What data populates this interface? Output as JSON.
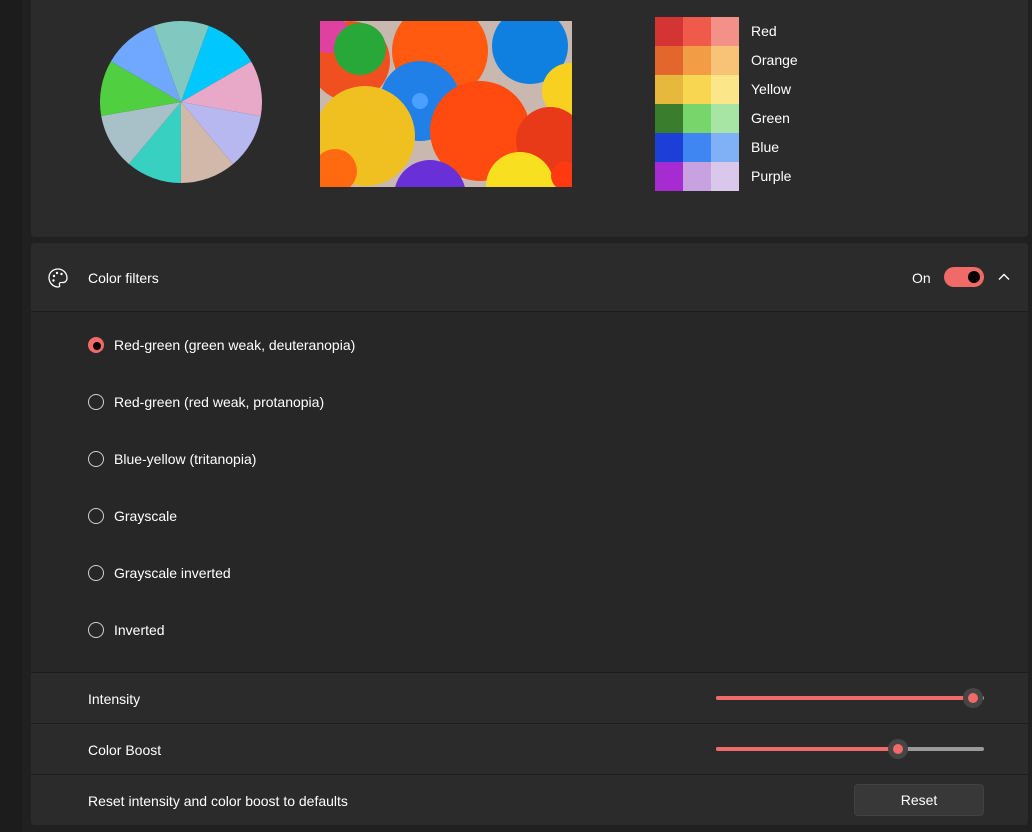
{
  "preview": {
    "pie_colors": [
      "#00c8ff",
      "#e8a8c8",
      "#b8b8f0",
      "#d2b8a8",
      "#38d0c0",
      "#a8c0c8",
      "#50d040",
      "#70a8ff",
      "#80c8c0"
    ],
    "swatches": [
      {
        "label": "Red",
        "colors": [
          "#d53434",
          "#ef5a4b",
          "#f39088"
        ]
      },
      {
        "label": "Orange",
        "colors": [
          "#e3672d",
          "#f29d45",
          "#f8c377"
        ]
      },
      {
        "label": "Yellow",
        "colors": [
          "#e6b83b",
          "#f8d651",
          "#fbe68a"
        ]
      },
      {
        "label": "Green",
        "colors": [
          "#3a7d2c",
          "#77d56b",
          "#a6e5a3"
        ]
      },
      {
        "label": "Blue",
        "colors": [
          "#1e3fd7",
          "#3f86f3",
          "#80b0f6"
        ]
      },
      {
        "label": "Purple",
        "colors": [
          "#a62bd1",
          "#c7a1e0",
          "#dac8ec"
        ]
      }
    ]
  },
  "color_filters": {
    "title": "Color filters",
    "toggle_label": "On",
    "toggle_on": true,
    "accent": "#f06a67",
    "options": [
      {
        "label": "Red-green (green weak, deuteranopia)",
        "checked": true
      },
      {
        "label": "Red-green (red weak, protanopia)",
        "checked": false
      },
      {
        "label": "Blue-yellow (tritanopia)",
        "checked": false
      },
      {
        "label": "Grayscale",
        "checked": false
      },
      {
        "label": "Grayscale inverted",
        "checked": false
      },
      {
        "label": "Inverted",
        "checked": false
      }
    ],
    "intensity": {
      "label": "Intensity",
      "value_percent": 96
    },
    "color_boost": {
      "label": "Color Boost",
      "value_percent": 68
    },
    "reset": {
      "label": "Reset intensity and color boost to defaults",
      "button_label": "Reset"
    }
  }
}
